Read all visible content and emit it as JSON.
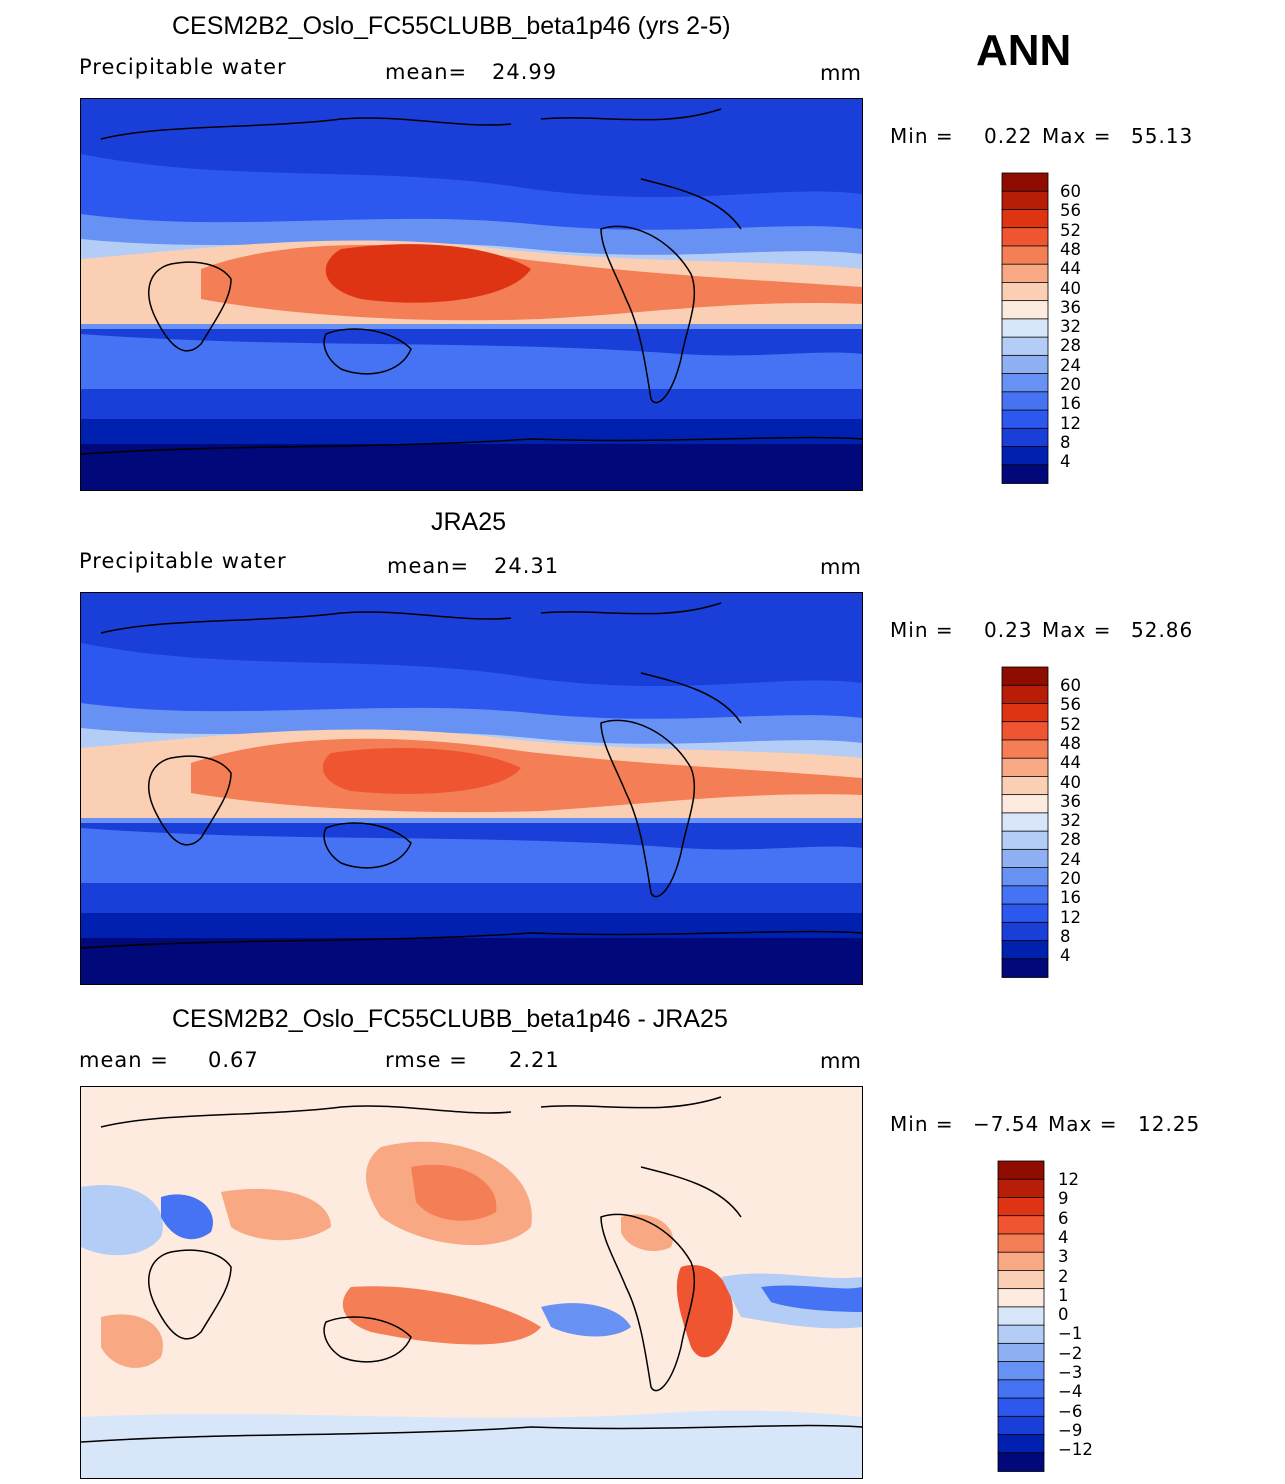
{
  "ann_label": "ANN",
  "colors": {
    "abs": [
      "#00087a",
      "#0020b0",
      "#1a3ed8",
      "#2d58ef",
      "#4573f4",
      "#6791f3",
      "#8fb0f3",
      "#b3cdf6",
      "#d8e6f9",
      "#fdebe0",
      "#fbcfb4",
      "#f8a882",
      "#f47e55",
      "#ef5530",
      "#df3414",
      "#b81d07",
      "#8e0c00"
    ],
    "diff": [
      "#00087a",
      "#0020b0",
      "#1a3ed8",
      "#2d58ef",
      "#4573f4",
      "#6791f3",
      "#8fb0f3",
      "#b3cdf6",
      "#d8e6f9",
      "#fdebe0",
      "#fbcfb4",
      "#f8a882",
      "#f47e55",
      "#ef5530",
      "#df3414",
      "#b81d07",
      "#8e0c00"
    ]
  },
  "panels": [
    {
      "title": "CESM2B2_Oslo_FC55CLUBB_beta1p46 (yrs 2-5)",
      "variable": "Precipitable water",
      "stat1_label": "mean=",
      "stat1_value": "24.99",
      "stat2_label": "",
      "stat2_value": "",
      "units": "mm",
      "min_label": "Min =",
      "min_value": "0.22",
      "max_label": "Max =",
      "max_value": "55.13",
      "colorbar_labels": [
        "60",
        "56",
        "52",
        "48",
        "44",
        "40",
        "36",
        "32",
        "28",
        "24",
        "20",
        "16",
        "12",
        "8",
        "4"
      ]
    },
    {
      "title": "JRA25",
      "variable": "Precipitable water",
      "stat1_label": "mean=",
      "stat1_value": "24.31",
      "stat2_label": "",
      "stat2_value": "",
      "units": "mm",
      "min_label": "Min =",
      "min_value": "0.23",
      "max_label": "Max =",
      "max_value": "52.86",
      "colorbar_labels": [
        "60",
        "56",
        "52",
        "48",
        "44",
        "40",
        "36",
        "32",
        "28",
        "24",
        "20",
        "16",
        "12",
        "8",
        "4"
      ]
    },
    {
      "title": "CESM2B2_Oslo_FC55CLUBB_beta1p46 - JRA25",
      "variable": "",
      "stat1_label": "mean =",
      "stat1_value": "0.67",
      "stat2_label": "rmse =",
      "stat2_value": "2.21",
      "units": "mm",
      "min_label": "Min =",
      "min_value": "−7.54",
      "max_label": "Max =",
      "max_value": "12.25",
      "colorbar_labels": [
        "12",
        "9",
        "6",
        "4",
        "3",
        "2",
        "1",
        "0",
        "−1",
        "−2",
        "−3",
        "−4",
        "−6",
        "−9",
        "−12"
      ]
    }
  ]
}
